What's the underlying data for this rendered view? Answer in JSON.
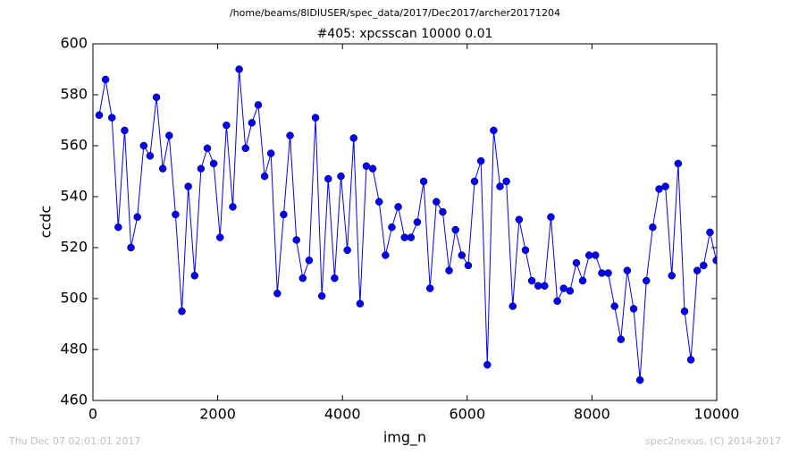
{
  "chart_data": {
    "type": "line",
    "header": "/home/beams/8IDIUSER/spec_data/2017/Dec2017/archer20171204",
    "title": "#405: xpcsscan 10000 0.01",
    "xlabel": "img_n",
    "ylabel": "ccdc",
    "footer_left": "Thu Dec 07 02:01:01 2017",
    "footer_right": "spec2nexus, (C) 2014-2017",
    "x": [
      100,
      202,
      304,
      406,
      508,
      610,
      712,
      814,
      916,
      1018,
      1120,
      1222,
      1324,
      1426,
      1528,
      1630,
      1732,
      1834,
      1936,
      2038,
      2140,
      2242,
      2344,
      2446,
      2548,
      2650,
      2752,
      2854,
      2956,
      3058,
      3160,
      3262,
      3364,
      3466,
      3568,
      3670,
      3772,
      3874,
      3976,
      4078,
      4180,
      4282,
      4384,
      4486,
      4588,
      4690,
      4792,
      4894,
      4996,
      5098,
      5200,
      5302,
      5404,
      5506,
      5608,
      5710,
      5812,
      5914,
      6016,
      6118,
      6220,
      6322,
      6424,
      6526,
      6628,
      6730,
      6832,
      6934,
      7036,
      7138,
      7240,
      7342,
      7444,
      7546,
      7648,
      7750,
      7852,
      7954,
      8056,
      8158,
      8260,
      8362,
      8464,
      8566,
      8668,
      8770,
      8872,
      8974,
      9076,
      9178,
      9280,
      9382,
      9484,
      9586,
      9688,
      9790,
      9892,
      9994
    ],
    "series": [
      {
        "color": "#0000ff",
        "values": [
          572,
          586,
          571,
          528,
          566,
          520,
          532,
          560,
          556,
          579,
          551,
          564,
          533,
          495,
          544,
          509,
          551,
          559,
          553,
          524,
          568,
          536,
          590,
          559,
          569,
          576,
          548,
          557,
          502,
          533,
          564,
          523,
          508,
          515,
          571,
          501,
          547,
          508,
          548,
          519,
          563,
          498,
          552,
          551,
          538,
          517,
          528,
          536,
          524,
          524,
          530,
          546,
          504,
          538,
          534,
          511,
          527,
          517,
          513,
          546,
          554,
          474,
          566,
          544,
          546,
          497,
          531,
          519,
          507,
          505,
          505,
          532,
          499,
          504,
          503,
          514,
          507,
          517,
          517,
          510,
          510,
          497,
          484,
          511,
          496,
          468,
          507,
          528,
          543,
          544,
          509,
          553,
          495,
          476,
          511,
          513,
          526,
          515
        ]
      }
    ],
    "xlim": [
      0,
      10000
    ],
    "xticks": [
      0,
      2000,
      4000,
      6000,
      8000,
      10000
    ],
    "ylim": [
      460,
      600
    ],
    "yticks": [
      460,
      480,
      500,
      520,
      540,
      560,
      580,
      600
    ],
    "grid": false
  }
}
